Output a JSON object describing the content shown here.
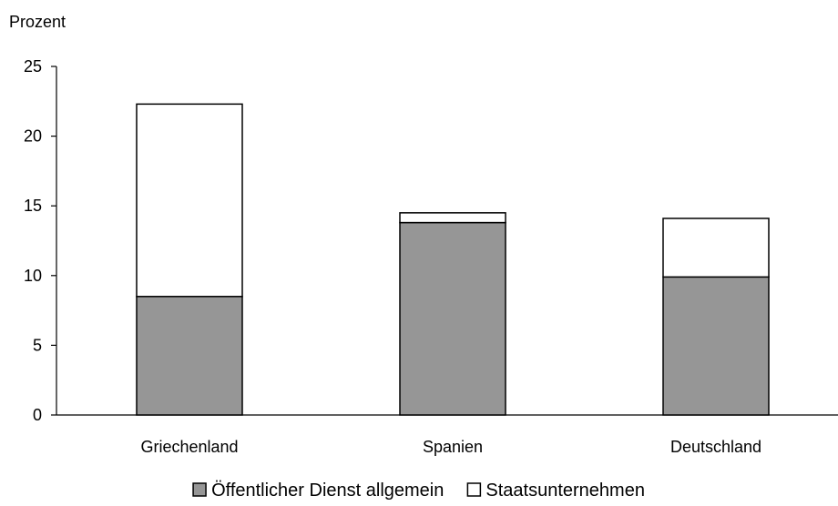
{
  "chart_data": {
    "type": "bar",
    "stacked": true,
    "title": "",
    "xlabel": "",
    "ylabel": "Prozent",
    "ylim": [
      0,
      25
    ],
    "yticks": [
      0,
      5,
      10,
      15,
      20,
      25
    ],
    "grid": false,
    "legend_position": "bottom",
    "categories": [
      "Griechenland",
      "Spanien",
      "Deutschland"
    ],
    "series": [
      {
        "name": "Öffentlicher Dienst allgemein",
        "color": "#969696",
        "values": [
          8.5,
          13.8,
          9.9
        ]
      },
      {
        "name": "Staatsunternehmen",
        "color": "#ffffff",
        "values": [
          13.8,
          0.7,
          4.2
        ]
      }
    ]
  }
}
